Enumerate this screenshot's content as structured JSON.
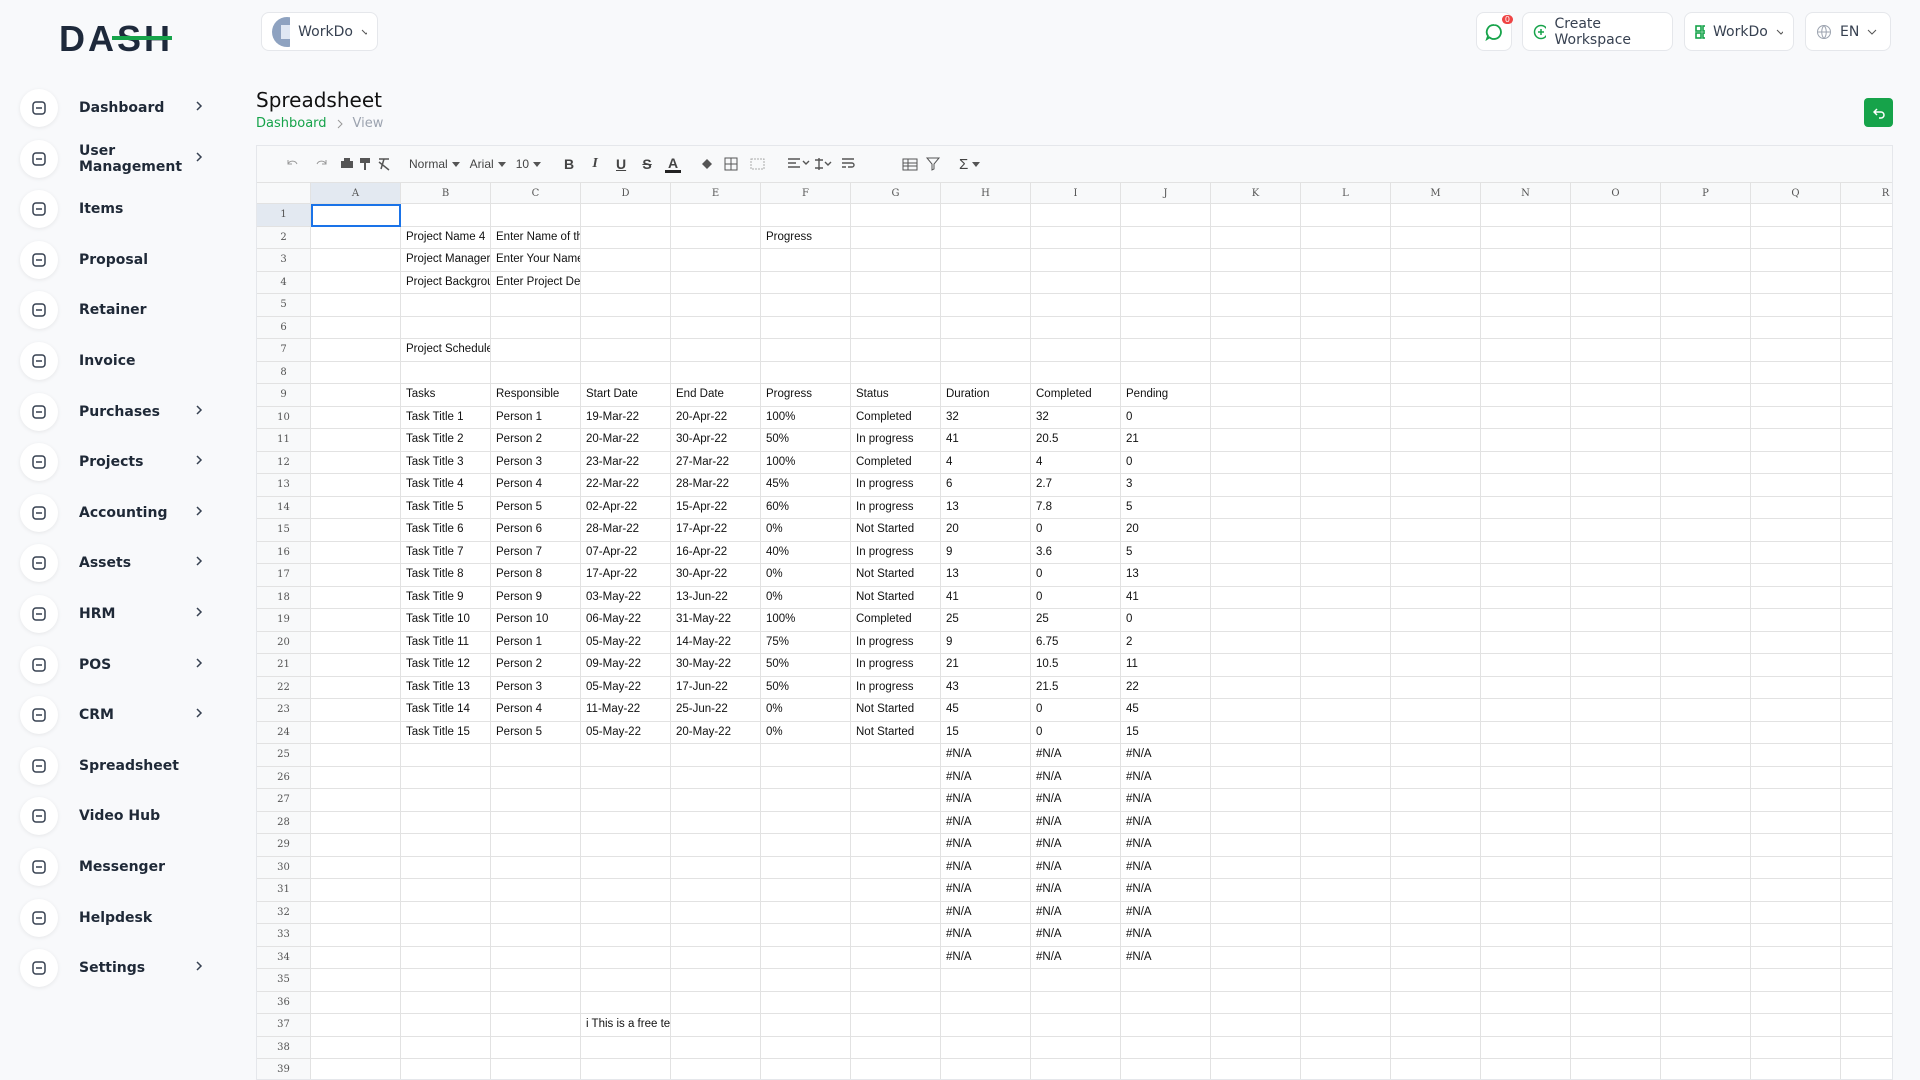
{
  "brand": "DASH",
  "header": {
    "workspace": "WorkDo",
    "notifications": 0,
    "create_workspace": "Create Workspace",
    "user_workspace": "WorkDo",
    "language": "EN"
  },
  "sidebar": [
    {
      "label": "Dashboard",
      "submenu": true
    },
    {
      "label": "User Management",
      "submenu": true
    },
    {
      "label": "Items",
      "submenu": false
    },
    {
      "label": "Proposal",
      "submenu": false
    },
    {
      "label": "Retainer",
      "submenu": false
    },
    {
      "label": "Invoice",
      "submenu": false
    },
    {
      "label": "Purchases",
      "submenu": true
    },
    {
      "label": "Projects",
      "submenu": true
    },
    {
      "label": "Accounting",
      "submenu": true
    },
    {
      "label": "Assets",
      "submenu": true
    },
    {
      "label": "HRM",
      "submenu": true
    },
    {
      "label": "POS",
      "submenu": true
    },
    {
      "label": "CRM",
      "submenu": true
    },
    {
      "label": "Spreadsheet",
      "submenu": false
    },
    {
      "label": "Video Hub",
      "submenu": false
    },
    {
      "label": "Messenger",
      "submenu": false
    },
    {
      "label": "Helpdesk",
      "submenu": false
    },
    {
      "label": "Settings",
      "submenu": true
    }
  ],
  "page": {
    "title": "Spreadsheet",
    "breadcrumb": [
      "Dashboard",
      "View"
    ]
  },
  "toolbar": {
    "style": "Normal",
    "font": "Arial",
    "size": 10,
    "format": [
      "B",
      "I",
      "U",
      "S",
      "A"
    ],
    "sum": "Σ"
  },
  "spreadsheet": {
    "columns": [
      "A",
      "B",
      "C",
      "D",
      "E",
      "F",
      "G",
      "H",
      "I",
      "J",
      "K",
      "L",
      "M",
      "N",
      "O",
      "P",
      "Q",
      "R"
    ],
    "rows": [
      {
        "number": 1
      },
      {
        "number": 2,
        "cells": {
          "B": "Project Name 4",
          "C": "Enter Name of th",
          "F": "Progress"
        }
      },
      {
        "number": 3,
        "cells": {
          "B": "Project Manager",
          "C": "Enter Your Name"
        }
      },
      {
        "number": 4,
        "cells": {
          "B": "Project Backgrou",
          "C": "Enter Project Det"
        }
      },
      {
        "number": 5
      },
      {
        "number": 6
      },
      {
        "number": 7,
        "cells": {
          "B": "Project Schedule"
        }
      },
      {
        "number": 8
      },
      {
        "number": 9,
        "cells": {
          "B": "Tasks",
          "C": "Responsible",
          "D": "Start Date",
          "E": "End Date",
          "F": "Progress",
          "G": "Status",
          "H": "Duration",
          "I": "Completed",
          "J": "Pending"
        }
      },
      {
        "number": 10,
        "cells": {
          "B": "Task Title 1",
          "C": "Person 1",
          "D": "19-Mar-22",
          "E": "20-Apr-22",
          "F": "100%",
          "G": "Completed",
          "H": 32,
          "I": 32,
          "J": 0
        }
      },
      {
        "number": 11,
        "cells": {
          "B": "Task Title 2",
          "C": "Person 2",
          "D": "20-Mar-22",
          "E": "30-Apr-22",
          "F": "50%",
          "G": "In progress",
          "H": 41,
          "I": 20.5,
          "J": 21
        }
      },
      {
        "number": 12,
        "cells": {
          "B": "Task Title 3",
          "C": "Person 3",
          "D": "23-Mar-22",
          "E": "27-Mar-22",
          "F": "100%",
          "G": "Completed",
          "H": 4,
          "I": 4,
          "J": 0
        }
      },
      {
        "number": 13,
        "cells": {
          "B": "Task Title 4",
          "C": "Person 4",
          "D": "22-Mar-22",
          "E": "28-Mar-22",
          "F": "45%",
          "G": "In progress",
          "H": 6,
          "I": 2.7,
          "J": 3
        }
      },
      {
        "number": 14,
        "cells": {
          "B": "Task Title 5",
          "C": "Person 5",
          "D": "02-Apr-22",
          "E": "15-Apr-22",
          "F": "60%",
          "G": "In progress",
          "H": 13,
          "I": 7.8,
          "J": 5
        }
      },
      {
        "number": 15,
        "cells": {
          "B": "Task Title 6",
          "C": "Person 6",
          "D": "28-Mar-22",
          "E": "17-Apr-22",
          "F": "0%",
          "G": "Not Started",
          "H": 20,
          "I": 0,
          "J": 20
        }
      },
      {
        "number": 16,
        "cells": {
          "B": "Task Title 7",
          "C": "Person 7",
          "D": "07-Apr-22",
          "E": "16-Apr-22",
          "F": "40%",
          "G": "In progress",
          "H": 9,
          "I": 3.6,
          "J": 5
        }
      },
      {
        "number": 17,
        "cells": {
          "B": "Task Title 8",
          "C": "Person 8",
          "D": "17-Apr-22",
          "E": "30-Apr-22",
          "F": "0%",
          "G": "Not Started",
          "H": 13,
          "I": 0,
          "J": 13
        }
      },
      {
        "number": 18,
        "cells": {
          "B": "Task Title 9",
          "C": "Person 9",
          "D": "03-May-22",
          "E": "13-Jun-22",
          "F": "0%",
          "G": "Not Started",
          "H": 41,
          "I": 0,
          "J": 41
        }
      },
      {
        "number": 19,
        "cells": {
          "B": "Task Title 10",
          "C": "Person 10",
          "D": "06-May-22",
          "E": "31-May-22",
          "F": "100%",
          "G": "Completed",
          "H": 25,
          "I": 25,
          "J": 0
        }
      },
      {
        "number": 20,
        "cells": {
          "B": "Task Title 11",
          "C": "Person 1",
          "D": "05-May-22",
          "E": "14-May-22",
          "F": "75%",
          "G": "In progress",
          "H": 9,
          "I": 6.75,
          "J": 2
        }
      },
      {
        "number": 21,
        "cells": {
          "B": "Task Title 12",
          "C": "Person 2",
          "D": "09-May-22",
          "E": "30-May-22",
          "F": "50%",
          "G": "In progress",
          "H": 21,
          "I": 10.5,
          "J": 11
        }
      },
      {
        "number": 22,
        "cells": {
          "B": "Task Title 13",
          "C": "Person 3",
          "D": "05-May-22",
          "E": "17-Jun-22",
          "F": "50%",
          "G": "In progress",
          "H": 43,
          "I": 21.5,
          "J": 22
        }
      },
      {
        "number": 23,
        "cells": {
          "B": "Task Title 14",
          "C": "Person 4",
          "D": "11-May-22",
          "E": "25-Jun-22",
          "F": "0%",
          "G": "Not Started",
          "H": 45,
          "I": 0,
          "J": 45
        }
      },
      {
        "number": 24,
        "cells": {
          "B": "Task Title 15",
          "C": "Person 5",
          "D": "05-May-22",
          "E": "20-May-22",
          "F": "0%",
          "G": "Not Started",
          "H": 15,
          "I": 0,
          "J": 15
        }
      },
      {
        "number": 25,
        "cells": {
          "H": "#N/A",
          "I": "#N/A",
          "J": "#N/A"
        }
      },
      {
        "number": 26,
        "cells": {
          "H": "#N/A",
          "I": "#N/A",
          "J": "#N/A"
        }
      },
      {
        "number": 27,
        "cells": {
          "H": "#N/A",
          "I": "#N/A",
          "J": "#N/A"
        }
      },
      {
        "number": 28,
        "cells": {
          "H": "#N/A",
          "I": "#N/A",
          "J": "#N/A"
        }
      },
      {
        "number": 29,
        "cells": {
          "H": "#N/A",
          "I": "#N/A",
          "J": "#N/A"
        }
      },
      {
        "number": 30,
        "cells": {
          "H": "#N/A",
          "I": "#N/A",
          "J": "#N/A"
        }
      },
      {
        "number": 31,
        "cells": {
          "H": "#N/A",
          "I": "#N/A",
          "J": "#N/A"
        }
      },
      {
        "number": 32,
        "cells": {
          "H": "#N/A",
          "I": "#N/A",
          "J": "#N/A"
        }
      },
      {
        "number": 33,
        "cells": {
          "H": "#N/A",
          "I": "#N/A",
          "J": "#N/A"
        }
      },
      {
        "number": 34,
        "cells": {
          "H": "#N/A",
          "I": "#N/A",
          "J": "#N/A"
        }
      },
      {
        "number": 35
      },
      {
        "number": 36
      },
      {
        "number": 37,
        "cells": {
          "D": "i This is a free ter"
        }
      },
      {
        "number": 38
      },
      {
        "number": 39
      }
    ]
  }
}
